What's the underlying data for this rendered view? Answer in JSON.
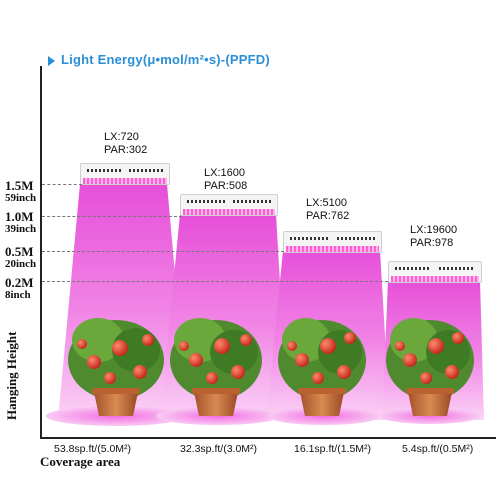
{
  "title": "Light Energy(μ•mol/m²•s)-(PPFD)",
  "colors": {
    "title": "#2a8fd6",
    "beam": "#e24fd8",
    "axis": "#222222"
  },
  "heights": [
    {
      "m": "1.5M",
      "inch": "59inch"
    },
    {
      "m": "1.0M",
      "inch": "39inch"
    },
    {
      "m": "0.5M",
      "inch": "20inch"
    },
    {
      "m": "0.2M",
      "inch": "8inch"
    }
  ],
  "y_axis_label": "Hanging Height",
  "x_axis_label": "Coverage area",
  "lights": [
    {
      "lx": "LX:720",
      "par": "PAR:302",
      "coverage": "53.8sp.ft/(5.0M²)"
    },
    {
      "lx": "LX:1600",
      "par": "PAR:508",
      "coverage": "32.3sp.ft/(3.0M²)"
    },
    {
      "lx": "LX:5100",
      "par": "PAR:762",
      "coverage": "16.1sp.ft/(1.5M²)"
    },
    {
      "lx": "LX:19600",
      "par": "PAR:978",
      "coverage": "5.4sp.ft/(0.5M²)"
    }
  ]
}
